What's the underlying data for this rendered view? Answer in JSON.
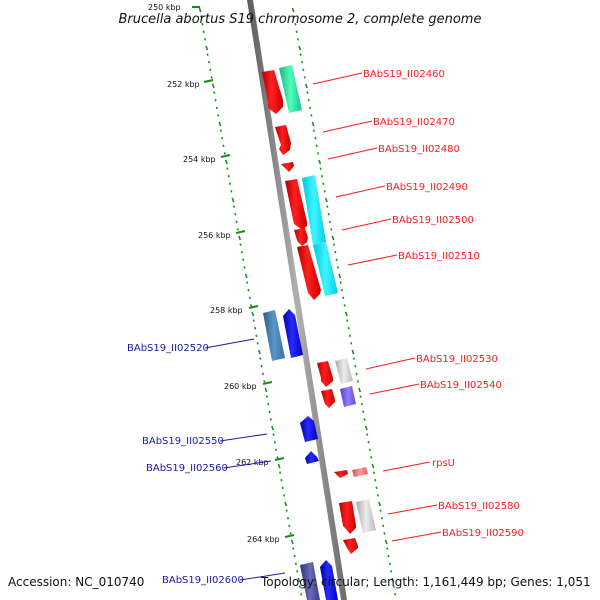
{
  "title": "Brucella abortus S19 chromosome 2, complete genome",
  "footer": {
    "accession": "Accession: NC_010740",
    "summary": "Topology: circular; Length: 1,161,449 bp; Genes: 1,051"
  },
  "scale_ticks": [
    "250 kbp",
    "252 kbp",
    "254 kbp",
    "256 kbp",
    "258 kbp",
    "260 kbp",
    "262 kbp",
    "264 kbp"
  ],
  "genes_forward": [
    {
      "label": "BAbS19_II02460",
      "color": "#ff1a1a"
    },
    {
      "label": "BAbS19_II02470",
      "color": "#ff1a1a"
    },
    {
      "label": "BAbS19_II02480",
      "color": "#ff1a1a"
    },
    {
      "label": "BAbS19_II02490",
      "color": "#ff1a1a"
    },
    {
      "label": "BAbS19_II02500",
      "color": "#ff1a1a"
    },
    {
      "label": "BAbS19_II02510",
      "color": "#ff1a1a"
    },
    {
      "label": "BAbS19_II02530",
      "color": "#ff1a1a"
    },
    {
      "label": "BAbS19_II02540",
      "color": "#ff1a1a"
    },
    {
      "label": "rpsU",
      "color": "#ff1a1a"
    },
    {
      "label": "BAbS19_II02580",
      "color": "#ff1a1a"
    },
    {
      "label": "BAbS19_II02590",
      "color": "#ff1a1a"
    }
  ],
  "genes_reverse": [
    {
      "label": "BAbS19_II02520",
      "color": "#1a1aff"
    },
    {
      "label": "BAbS19_II02550",
      "color": "#1a1aff"
    },
    {
      "label": "BAbS19_II02560",
      "color": "#1a1aff"
    },
    {
      "label": "BAbS19_II02600",
      "color": "#1a1aff"
    }
  ],
  "colors": {
    "forward_cds": "#ff1a1a",
    "reverse_cds": "#1a1aff",
    "gc_dots": "#1a8c1a",
    "backbone": "#808080",
    "cog_green": "#33e6a0",
    "cog_cyan": "#1ae6f0",
    "cog_steel": "#4682b4",
    "cog_grey": "#c8c8c8",
    "cog_purple": "#7b68ee",
    "cog_pink": "#f08080",
    "cog_navy": "#4b4b9a"
  }
}
